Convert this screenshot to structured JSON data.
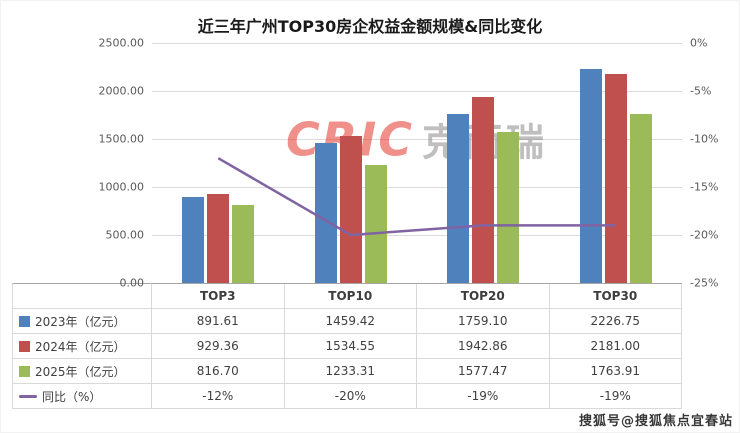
{
  "title": "近三年广州TOP30房企权益金额规模&同比变化",
  "watermark": {
    "cric": "CRIC",
    "cric_cn": "克而瑞",
    "sohu": "搜狐号@搜狐焦点宜春站"
  },
  "colors": {
    "bar_2023": "#4F81BD",
    "bar_2024": "#C0504D",
    "bar_2025": "#9BBB59",
    "line_yoy": "#8064A2",
    "gridline": "#DCDCDC",
    "axis_line": "#A6A6A6"
  },
  "chart_data": {
    "type": "bar",
    "subtype": "grouped-bars-with-line",
    "title": "近三年广州TOP30房企权益金额规模&同比变化",
    "categories": [
      "TOP3",
      "TOP10",
      "TOP20",
      "TOP30"
    ],
    "series": [
      {
        "name": "2023年（亿元）",
        "type": "bar",
        "color": "#4F81BD",
        "values": [
          891.61,
          1459.42,
          1759.1,
          2226.75
        ],
        "display": [
          "891.61",
          "1459.42",
          "1759.10",
          "2226.75"
        ]
      },
      {
        "name": "2024年（亿元）",
        "type": "bar",
        "color": "#C0504D",
        "values": [
          929.36,
          1534.55,
          1942.86,
          2181.0
        ],
        "display": [
          "929.36",
          "1534.55",
          "1942.86",
          "2181.00"
        ]
      },
      {
        "name": "2025年（亿元）",
        "type": "bar",
        "color": "#9BBB59",
        "values": [
          816.7,
          1233.31,
          1577.47,
          1763.91
        ],
        "display": [
          "816.70",
          "1233.31",
          "1577.47",
          "1763.91"
        ]
      },
      {
        "name": "同比（%）",
        "type": "line",
        "color": "#8064A2",
        "values": [
          -12,
          -20,
          -19,
          -19
        ],
        "display": [
          "-12%",
          "-20%",
          "-19%",
          "-19%"
        ]
      }
    ],
    "y_left": {
      "min": 0,
      "max": 2500,
      "ticks": [
        "2500.00",
        "2000.00",
        "1500.00",
        "1000.00",
        "500.00",
        "0.00"
      ]
    },
    "y_right": {
      "min": -25,
      "max": 0,
      "ticks": [
        "0%",
        "-5%",
        "-10%",
        "-15%",
        "-20%",
        "-25%"
      ]
    },
    "grid": true,
    "legend_position": "data-table-left"
  }
}
